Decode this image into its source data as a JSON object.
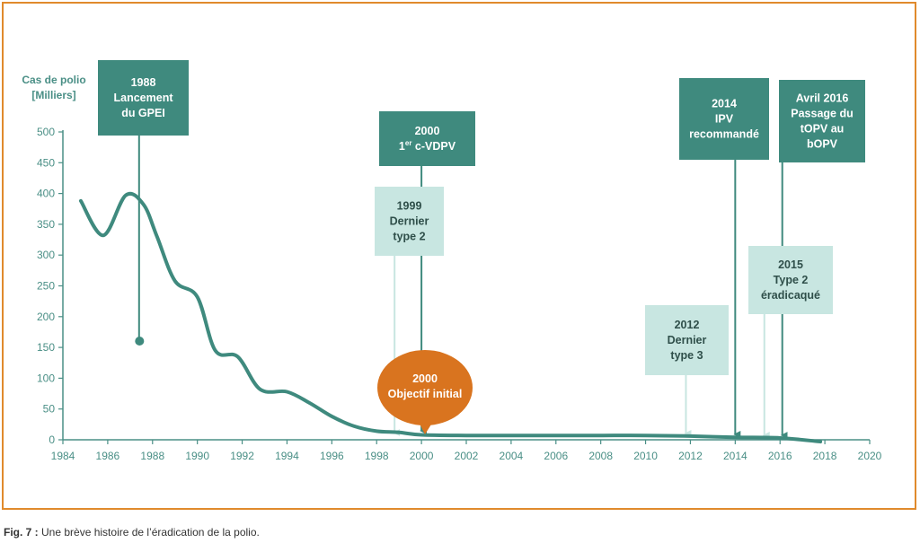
{
  "caption": {
    "label": "Fig. 7 :",
    "text": "Une brève histoire de l’éradication de la polio."
  },
  "colors": {
    "frame": "#e08a2c",
    "teal_dark": "#3f8a7e",
    "teal_light": "#c8e6e1",
    "orange": "#d9741f",
    "axis": "#4a8f86",
    "line": "#3f8a7e"
  },
  "chart_data": {
    "type": "line",
    "ylabel": [
      "Cas de polio",
      "[Milliers]"
    ],
    "xlim": [
      1984,
      2020
    ],
    "ylim": [
      0,
      500
    ],
    "x_ticks": [
      1984,
      1986,
      1988,
      1990,
      1992,
      1994,
      1996,
      1998,
      2000,
      2002,
      2004,
      2006,
      2008,
      2010,
      2012,
      2014,
      2016,
      2018,
      2020
    ],
    "y_ticks": [
      0,
      50,
      100,
      150,
      200,
      250,
      300,
      350,
      400,
      450,
      500
    ],
    "series": [
      {
        "x": [
          1984.8,
          1985.8,
          1986.8,
          1987.6,
          1988.2,
          1989.0,
          1990.0,
          1990.8,
          1991.8,
          1992.8,
          1994.0,
          1995.0,
          1996.0,
          1997.0,
          1998.0,
          1999.0,
          2000.0,
          2002.0,
          2004.0,
          2006.0,
          2008.0,
          2010.0,
          2012.0,
          2014.0,
          2016.0,
          2017.8
        ],
        "y": [
          388,
          332,
          397,
          382,
          330,
          258,
          232,
          145,
          135,
          82,
          78,
          60,
          38,
          22,
          14,
          12,
          8,
          7,
          7,
          7,
          7,
          7,
          6,
          4,
          3,
          -3
        ]
      }
    ],
    "annotations": [
      {
        "id": "1988",
        "style": "dark",
        "x": 1987.4,
        "lines": [
          "1988",
          "Lancement",
          "du GPEI"
        ],
        "connector": "dot"
      },
      {
        "id": "2000",
        "style": "dark",
        "x": 2000.0,
        "lines": [
          "2000",
          "1er c-VDPV"
        ],
        "connector": "arrow"
      },
      {
        "id": "1999",
        "style": "light",
        "x": 1998.8,
        "lines": [
          "1999",
          "Dernier",
          "type 2"
        ],
        "connector": "arrow"
      },
      {
        "id": "2000-goal",
        "style": "orange",
        "x": 2000.0,
        "lines": [
          "2000",
          "Objectif initial"
        ]
      },
      {
        "id": "2012",
        "style": "light",
        "x": 2011.8,
        "lines": [
          "2012",
          "Dernier",
          "type 3"
        ],
        "connector": "arrow"
      },
      {
        "id": "2014",
        "style": "dark",
        "x": 2014.0,
        "lines": [
          "2014",
          "IPV",
          "recommandé"
        ],
        "connector": "arrow"
      },
      {
        "id": "2015",
        "style": "light",
        "x": 2015.3,
        "lines": [
          "2015",
          "Type 2",
          "éradicaqué"
        ],
        "connector": "arrow"
      },
      {
        "id": "2016",
        "style": "dark",
        "x": 2016.1,
        "lines": [
          "Avril 2016",
          "Passage du",
          "tOPV au",
          "bOPV"
        ],
        "connector": "arrow"
      }
    ]
  }
}
